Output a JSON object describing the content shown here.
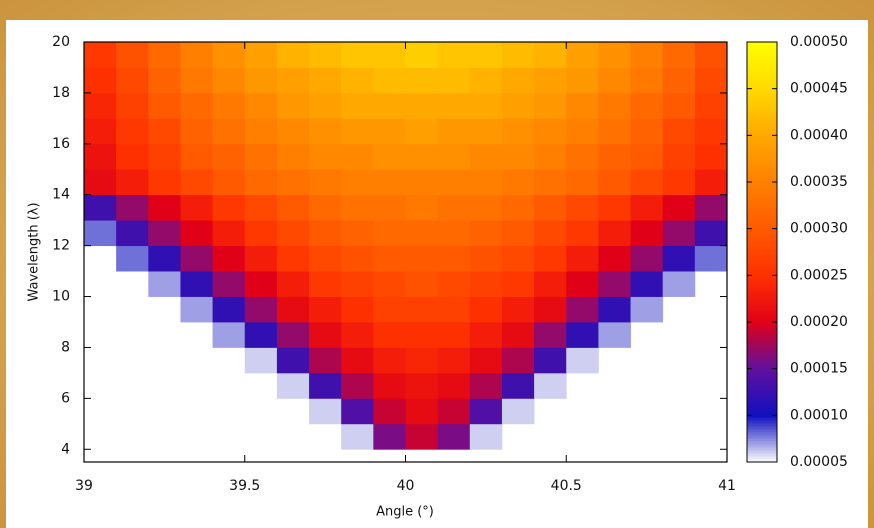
{
  "chart_data": {
    "type": "heatmap",
    "x_label": "Angle (°)",
    "y_label": "Wavelength (λ)",
    "xlim": [
      39,
      41
    ],
    "ylim": [
      3.5,
      20
    ],
    "xticks": [
      39,
      39.5,
      40,
      40.5,
      41
    ],
    "yticks": [
      4,
      6,
      8,
      10,
      12,
      14,
      16,
      18,
      20
    ],
    "x_bins": [
      39,
      39.1,
      39.2,
      39.3,
      39.4,
      39.5,
      39.6,
      39.7,
      39.8,
      39.9,
      40,
      40.1,
      40.2,
      40.3,
      40.4,
      40.5,
      40.6,
      40.7,
      40.8,
      40.9,
      41
    ],
    "y_bins": [
      4,
      5,
      6,
      7,
      8,
      9,
      10,
      11,
      12,
      13,
      14,
      15,
      16,
      17,
      18,
      19,
      20
    ],
    "values": [
      [
        null,
        null,
        null,
        null,
        null,
        null,
        null,
        null,
        6e-05,
        0.00016,
        0.00019,
        0.00016,
        6e-05,
        null,
        null,
        null,
        null,
        null,
        null,
        null
      ],
      [
        null,
        null,
        null,
        null,
        null,
        null,
        null,
        6e-05,
        0.00014,
        0.00019,
        0.00021,
        0.00019,
        0.00014,
        6e-05,
        null,
        null,
        null,
        null,
        null,
        null
      ],
      [
        null,
        null,
        null,
        null,
        null,
        null,
        6e-05,
        0.00013,
        0.00018,
        0.00021,
        0.00022,
        0.00021,
        0.00018,
        0.00013,
        6e-05,
        null,
        null,
        null,
        null,
        null
      ],
      [
        null,
        null,
        null,
        null,
        null,
        6e-05,
        0.00013,
        0.00018,
        0.00021,
        0.00023,
        0.00024,
        0.00023,
        0.00021,
        0.00018,
        0.00013,
        6e-05,
        null,
        null,
        null,
        null
      ],
      [
        null,
        null,
        null,
        null,
        7e-05,
        0.00012,
        0.00017,
        0.00021,
        0.00023,
        0.00025,
        0.00025,
        0.00025,
        0.00023,
        0.00021,
        0.00017,
        0.00012,
        7e-05,
        null,
        null,
        null
      ],
      [
        null,
        null,
        null,
        7e-05,
        0.00012,
        0.00017,
        0.00021,
        0.00023,
        0.00025,
        0.00027,
        0.00027,
        0.00027,
        0.00025,
        0.00023,
        0.00021,
        0.00017,
        0.00012,
        7e-05,
        null,
        null
      ],
      [
        null,
        null,
        7e-05,
        0.00012,
        0.00017,
        0.0002,
        0.00023,
        0.00026,
        0.00027,
        0.00028,
        0.00029,
        0.00028,
        0.00027,
        0.00026,
        0.00023,
        0.0002,
        0.00017,
        0.00012,
        7e-05,
        null
      ],
      [
        null,
        8e-05,
        0.00012,
        0.00017,
        0.0002,
        0.00023,
        0.00026,
        0.00028,
        0.00029,
        0.0003,
        0.0003,
        0.0003,
        0.00029,
        0.00028,
        0.00026,
        0.00023,
        0.0002,
        0.00017,
        0.00012,
        8e-05
      ],
      [
        8e-05,
        0.00013,
        0.00017,
        0.0002,
        0.00023,
        0.00026,
        0.00028,
        0.0003,
        0.00031,
        0.00032,
        0.00032,
        0.00032,
        0.00031,
        0.0003,
        0.00028,
        0.00026,
        0.00023,
        0.0002,
        0.00017,
        0.00013
      ],
      [
        0.00013,
        0.00017,
        0.0002,
        0.00023,
        0.00026,
        0.00028,
        0.0003,
        0.00032,
        0.00033,
        0.00033,
        0.00034,
        0.00033,
        0.00033,
        0.00032,
        0.0003,
        0.00028,
        0.00026,
        0.00023,
        0.0002,
        0.00017
      ],
      [
        0.00021,
        0.00023,
        0.00026,
        0.00028,
        0.0003,
        0.00032,
        0.00033,
        0.00034,
        0.00035,
        0.00035,
        0.00035,
        0.00035,
        0.00035,
        0.00034,
        0.00033,
        0.00032,
        0.0003,
        0.00028,
        0.00026,
        0.00023
      ],
      [
        0.00022,
        0.00025,
        0.00027,
        0.0003,
        0.00031,
        0.00033,
        0.00035,
        0.00036,
        0.00036,
        0.00037,
        0.00037,
        0.00037,
        0.00036,
        0.00036,
        0.00035,
        0.00033,
        0.00031,
        0.0003,
        0.00027,
        0.00025
      ],
      [
        0.00023,
        0.00026,
        0.00028,
        0.00031,
        0.00033,
        0.00035,
        0.00036,
        0.00037,
        0.00038,
        0.00038,
        0.00039,
        0.00038,
        0.00038,
        0.00037,
        0.00036,
        0.00035,
        0.00033,
        0.00031,
        0.00028,
        0.00026
      ],
      [
        0.00024,
        0.00027,
        0.0003,
        0.00032,
        0.00034,
        0.00036,
        0.00038,
        0.00039,
        0.0004,
        0.0004,
        0.0004,
        0.0004,
        0.0004,
        0.00039,
        0.00038,
        0.00036,
        0.00034,
        0.00032,
        0.0003,
        0.00027
      ],
      [
        0.00025,
        0.00028,
        0.00031,
        0.00034,
        0.00036,
        0.00038,
        0.00039,
        0.0004,
        0.00041,
        0.00042,
        0.00042,
        0.00042,
        0.00041,
        0.0004,
        0.00039,
        0.00038,
        0.00036,
        0.00034,
        0.00031,
        0.00028
      ],
      [
        0.00026,
        0.00029,
        0.00032,
        0.00035,
        0.00037,
        0.00039,
        0.00041,
        0.00042,
        0.00043,
        0.00043,
        0.00044,
        0.00043,
        0.00043,
        0.00042,
        0.00041,
        0.00039,
        0.00037,
        0.00035,
        0.00032,
        0.00029
      ]
    ],
    "zlim": [
      5e-05,
      0.0005
    ],
    "zticks": [
      {
        "value": 5e-05,
        "label": "0.00005"
      },
      {
        "value": 0.0001,
        "label": "0.00010"
      },
      {
        "value": 0.00015,
        "label": "0.00015"
      },
      {
        "value": 0.0002,
        "label": "0.00020"
      },
      {
        "value": 0.00025,
        "label": "0.00025"
      },
      {
        "value": 0.0003,
        "label": "0.00030"
      },
      {
        "value": 0.00035,
        "label": "0.00035"
      },
      {
        "value": 0.0004,
        "label": "0.00040"
      },
      {
        "value": 0.00045,
        "label": "0.00045"
      },
      {
        "value": 0.0005,
        "label": "0.00050"
      }
    ],
    "colormap": [
      "#ffffff",
      "#1010c0",
      "#6010a0",
      "#e00018",
      "#ff3000",
      "#ff5a00",
      "#ff8000",
      "#ffa800",
      "#ffd800",
      "#ffff00"
    ]
  }
}
